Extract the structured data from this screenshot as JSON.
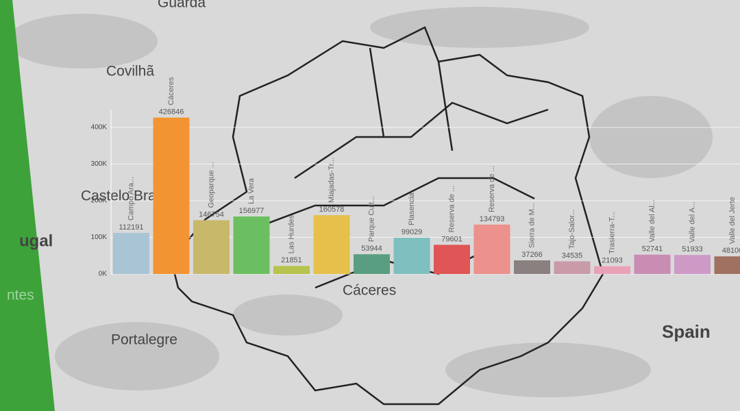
{
  "map_labels": [
    "Guarda",
    "Covilhã",
    "Castelo Branco",
    "ugal",
    "Portalegre",
    "Cáceres",
    "Spain",
    "ntes"
  ],
  "chart_data": {
    "type": "bar",
    "categories": [
      "Campo Ara...",
      "Cáceres",
      "Geoparque ...",
      "La Vera",
      "Las Hurdes",
      "Miajadas-Tr...",
      "Parque Cult...",
      "Plasencia",
      "Reserva de ...",
      "Reserva de ...",
      "Sierra de M...",
      "Tajo-Salor...",
      "Trasierra-T...",
      "Valle del Al...",
      "Valle del A...",
      "Valle del Jerte"
    ],
    "values": [
      112191,
      426846,
      146754,
      156977,
      21851,
      160578,
      53944,
      99029,
      79601,
      134793,
      37266,
      34535,
      21093,
      52741,
      51933,
      48100
    ],
    "colors": [
      "#a9c4d4",
      "#f39433",
      "#c8b86a",
      "#6cbf60",
      "#b6c34e",
      "#e6c04b",
      "#5a9e82",
      "#7fbfbf",
      "#e05555",
      "#ec918c",
      "#8a8080",
      "#c99aa8",
      "#e9a1b6",
      "#c98db4",
      "#cd9ac6",
      "#a07060"
    ],
    "ylim": [
      0,
      430000
    ],
    "yticks": [
      {
        "value": 0,
        "label": "0K"
      },
      {
        "value": 100000,
        "label": "100K"
      },
      {
        "value": 200000,
        "label": "200K"
      },
      {
        "value": 300000,
        "label": "300K"
      },
      {
        "value": 400000,
        "label": "400K"
      }
    ],
    "grid": true
  }
}
